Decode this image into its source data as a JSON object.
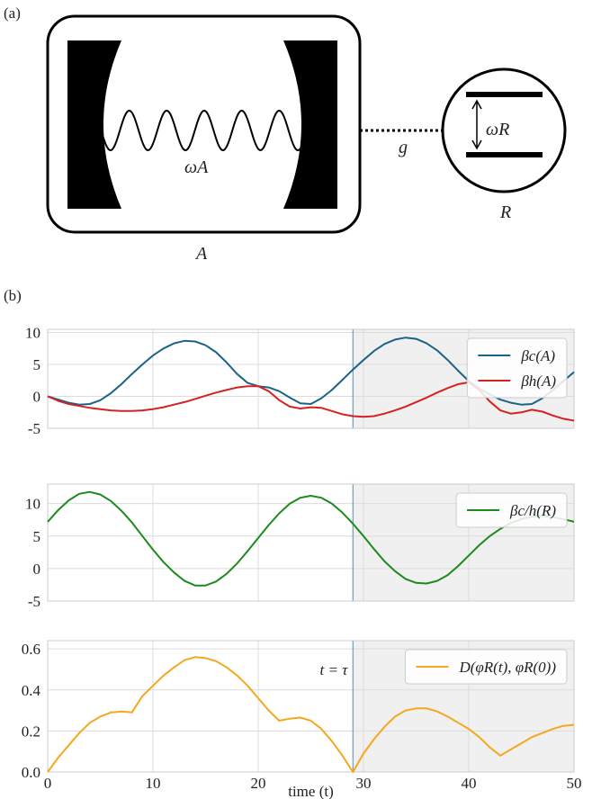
{
  "panel_labels": [
    "(a)",
    "(b)"
  ],
  "diagram": {
    "cavity_frequency": "ωA",
    "coupling": "g",
    "qubit_frequency": "ωR",
    "qubit_label": "R",
    "cavity_label": "A"
  },
  "chart_data": [
    {
      "type": "line",
      "x": [
        0,
        1,
        2,
        3,
        4,
        5,
        6,
        7,
        8,
        9,
        10,
        11,
        12,
        13,
        14,
        15,
        16,
        17,
        18,
        19,
        20,
        21,
        22,
        23,
        24,
        25,
        26,
        27,
        28,
        29,
        30,
        31,
        32,
        33,
        34,
        35,
        36,
        37,
        38,
        39,
        40,
        41,
        42,
        43,
        44,
        45,
        46,
        47,
        48,
        49,
        50
      ],
      "series": [
        {
          "name": "βc(A)",
          "color": "#1a6386",
          "values": [
            0,
            -0.5,
            -1.0,
            -1.3,
            -1.2,
            -0.6,
            0.5,
            1.9,
            3.5,
            5.0,
            6.4,
            7.5,
            8.3,
            8.7,
            8.6,
            8.0,
            6.9,
            5.3,
            3.5,
            2.1,
            1.6,
            1.4,
            0.8,
            -0.2,
            -1.1,
            -1.2,
            -0.3,
            1.0,
            2.6,
            4.2,
            5.7,
            7.1,
            8.2,
            8.9,
            9.2,
            9.0,
            8.3,
            7.2,
            5.7,
            4.0,
            2.4,
            1.2,
            0.3,
            -0.5,
            -1.0,
            -1.3,
            -1.2,
            -0.3,
            1.0,
            2.4,
            3.8
          ]
        },
        {
          "name": "βh(A)",
          "color": "#d42222",
          "values": [
            0,
            -0.7,
            -1.2,
            -1.5,
            -1.8,
            -2.0,
            -2.2,
            -2.3,
            -2.3,
            -2.2,
            -2.0,
            -1.7,
            -1.3,
            -0.9,
            -0.4,
            0.1,
            0.6,
            1.0,
            1.4,
            1.6,
            1.6,
            0.8,
            -0.6,
            -1.6,
            -1.9,
            -1.7,
            -1.8,
            -2.3,
            -2.8,
            -3.1,
            -3.2,
            -3.1,
            -2.7,
            -2.2,
            -1.6,
            -0.9,
            -0.2,
            0.6,
            1.3,
            1.9,
            2.2,
            1.0,
            -0.8,
            -2.2,
            -2.7,
            -2.5,
            -2.1,
            -2.4,
            -3.0,
            -3.5,
            -3.8
          ]
        }
      ],
      "xlim": [
        0,
        50
      ],
      "xticks": [
        0,
        10,
        20,
        30,
        40,
        50
      ],
      "ylim": [
        -5,
        10.5
      ],
      "yticks": [
        -5,
        0,
        5,
        10
      ],
      "grid": true,
      "legend": "upper right",
      "vline": 29
    },
    {
      "type": "line",
      "x": [
        0,
        1,
        2,
        3,
        4,
        5,
        6,
        7,
        8,
        9,
        10,
        11,
        12,
        13,
        14,
        15,
        16,
        17,
        18,
        19,
        20,
        21,
        22,
        23,
        24,
        25,
        26,
        27,
        28,
        29,
        30,
        31,
        32,
        33,
        34,
        35,
        36,
        37,
        38,
        39,
        40,
        41,
        42,
        43,
        44,
        45,
        46,
        47,
        48,
        49,
        50
      ],
      "series": [
        {
          "name": "βc/h(R)",
          "color": "#1c8a1c",
          "values": [
            7.2,
            9.0,
            10.5,
            11.5,
            11.8,
            11.4,
            10.4,
            8.9,
            7.1,
            5.0,
            2.9,
            1.0,
            -0.6,
            -1.9,
            -2.6,
            -2.6,
            -2.0,
            -0.8,
            0.8,
            2.7,
            4.7,
            6.7,
            8.5,
            10.0,
            10.9,
            11.2,
            10.9,
            10.0,
            8.6,
            6.9,
            5.0,
            3.0,
            1.1,
            -0.4,
            -1.6,
            -2.2,
            -2.3,
            -1.9,
            -1.0,
            0.4,
            2.0,
            3.6,
            5.0,
            6.1,
            7.0,
            7.6,
            8.0,
            8.1,
            7.9,
            7.6,
            7.2
          ]
        }
      ],
      "xlim": [
        0,
        50
      ],
      "xticks": [
        0,
        10,
        20,
        30,
        40,
        50
      ],
      "ylim": [
        -5,
        13
      ],
      "yticks": [
        -5,
        0,
        5,
        10
      ],
      "grid": true,
      "legend": "upper right",
      "vline": 29
    },
    {
      "type": "line",
      "x": [
        0,
        1,
        2,
        3,
        4,
        5,
        6,
        7,
        8,
        9,
        10,
        11,
        12,
        13,
        14,
        15,
        16,
        17,
        18,
        19,
        20,
        21,
        22,
        23,
        24,
        25,
        26,
        27,
        28,
        29,
        30,
        31,
        32,
        33,
        34,
        35,
        36,
        37,
        38,
        39,
        40,
        41,
        42,
        43,
        44,
        45,
        46,
        47,
        48,
        49,
        50
      ],
      "series": [
        {
          "name": "D(φR(t), φR(0))",
          "color": "#f5a81c",
          "values": [
            0,
            0.07,
            0.13,
            0.19,
            0.24,
            0.27,
            0.29,
            0.295,
            0.29,
            0.37,
            0.42,
            0.47,
            0.51,
            0.545,
            0.56,
            0.555,
            0.54,
            0.51,
            0.47,
            0.42,
            0.36,
            0.3,
            0.25,
            0.26,
            0.265,
            0.25,
            0.21,
            0.15,
            0.08,
            0,
            0.09,
            0.16,
            0.22,
            0.27,
            0.3,
            0.31,
            0.31,
            0.295,
            0.27,
            0.24,
            0.21,
            0.17,
            0.12,
            0.08,
            0.11,
            0.14,
            0.17,
            0.19,
            0.21,
            0.225,
            0.23
          ]
        }
      ],
      "xlim": [
        0,
        50
      ],
      "xticks": [
        0,
        10,
        20,
        30,
        40,
        50
      ],
      "ylim": [
        0,
        0.64
      ],
      "yticks": [
        {
          "value": 0,
          "label": "0.0"
        },
        0.2,
        0.4,
        0.6
      ],
      "xlabel": "time (t)",
      "annotation": "t = τ",
      "grid": true,
      "legend": "upper right",
      "vline": 29
    }
  ]
}
